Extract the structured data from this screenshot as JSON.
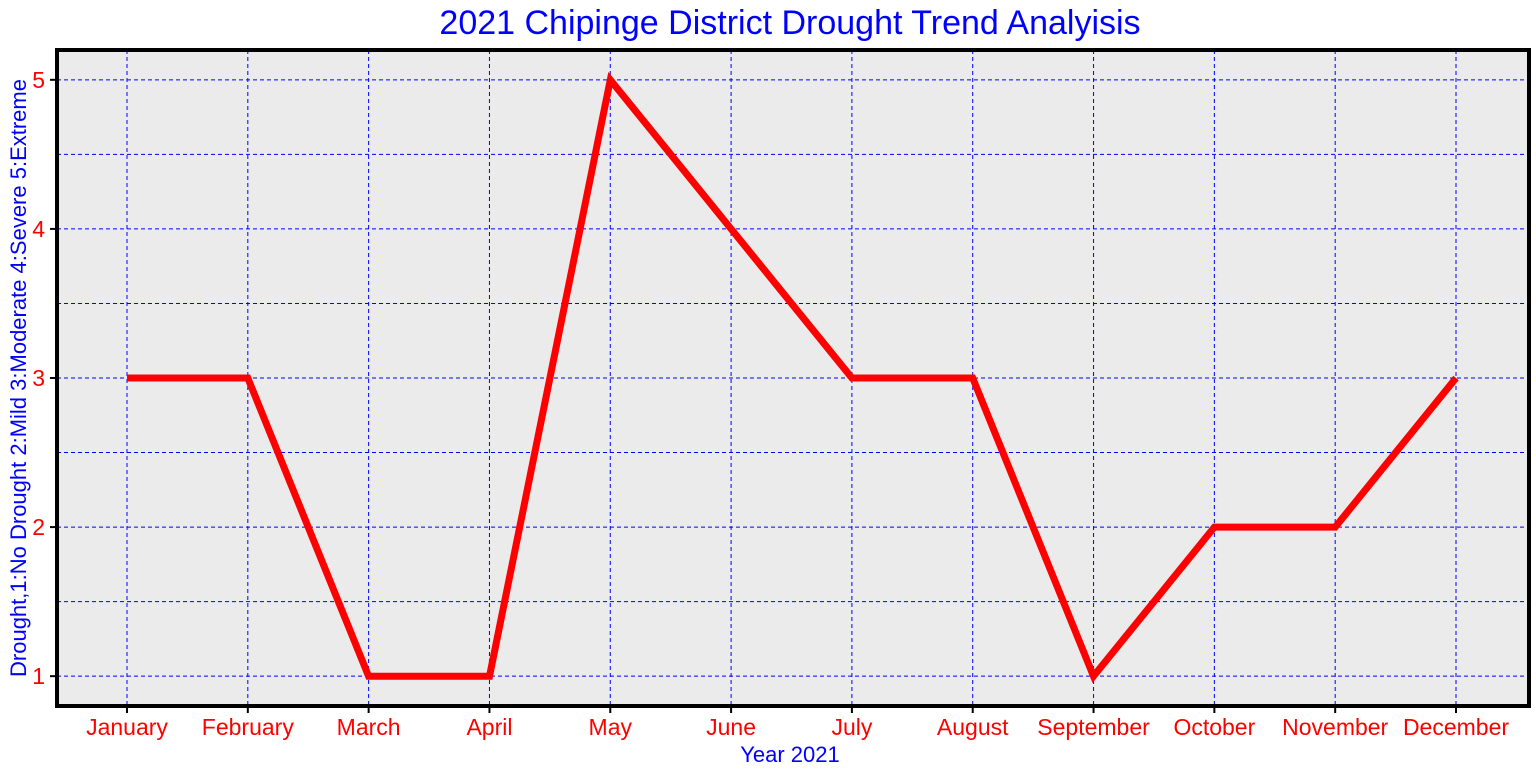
{
  "chart_data": {
    "type": "line",
    "title": "2021 Chipinge District Drought Trend Analyisis",
    "xlabel": "Year 2021",
    "ylabel": "Drought,1:No Drought 2:Mild 3:Moderate 4:Severe 5:Extreme",
    "categories": [
      "January",
      "February",
      "March",
      "April",
      "May",
      "June",
      "July",
      "August",
      "September",
      "October",
      "November",
      "December"
    ],
    "series": [
      {
        "values": [
          3,
          3,
          1,
          1,
          5,
          4,
          3,
          3,
          1,
          2,
          2,
          3
        ]
      }
    ],
    "ylim": [
      0.8,
      5.2
    ],
    "yticks": [
      1,
      2,
      3,
      4,
      5
    ],
    "y_minor_grid": [
      1.5,
      2.5,
      3.5,
      4.5
    ],
    "grid": true,
    "colors": {
      "line": "#ff0000",
      "grid": "#0000ff",
      "plot_background": "#ebebeb",
      "frame": "#000000",
      "title": "#0000ff",
      "axis_label": "#0000ff",
      "tick_label": "#ff0000"
    }
  }
}
